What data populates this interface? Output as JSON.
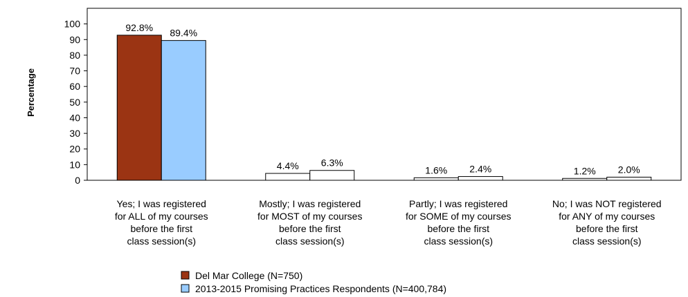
{
  "chart_data": {
    "type": "bar",
    "ylabel": "Percentage",
    "ylim": [
      0,
      110
    ],
    "yticks": [
      0,
      10,
      20,
      30,
      40,
      50,
      60,
      70,
      80,
      90,
      100
    ],
    "categories": [
      [
        "Yes; I was registered",
        "for ALL of my courses",
        "before the first",
        "class session(s)"
      ],
      [
        "Mostly; I was registered",
        "for MOST of my courses",
        "before the first",
        "class session(s)"
      ],
      [
        "Partly; I was registered",
        "for SOME of my courses",
        "before the first",
        "class session(s)"
      ],
      [
        "No; I was NOT registered",
        "for ANY of my courses",
        "before the first",
        "class session(s)"
      ]
    ],
    "series": [
      {
        "name": "Del Mar College (N=750)",
        "values": [
          92.8,
          4.4,
          1.6,
          1.2
        ],
        "labels": [
          "92.8%",
          "4.4%",
          "1.6%",
          "1.2%"
        ]
      },
      {
        "name": "2013-2015 Promising Practices Respondents (N=400,784)",
        "values": [
          89.4,
          6.3,
          2.4,
          2.0
        ],
        "labels": [
          "89.4%",
          "6.3%",
          "2.4%",
          "2.0%"
        ]
      }
    ],
    "highlight_category": 0,
    "colors": {
      "series0": "#9b3413",
      "series1": "#99ccff",
      "plain_bar": "#ffffff",
      "border": "#000000"
    },
    "grid": false,
    "legend_position": "bottom"
  }
}
